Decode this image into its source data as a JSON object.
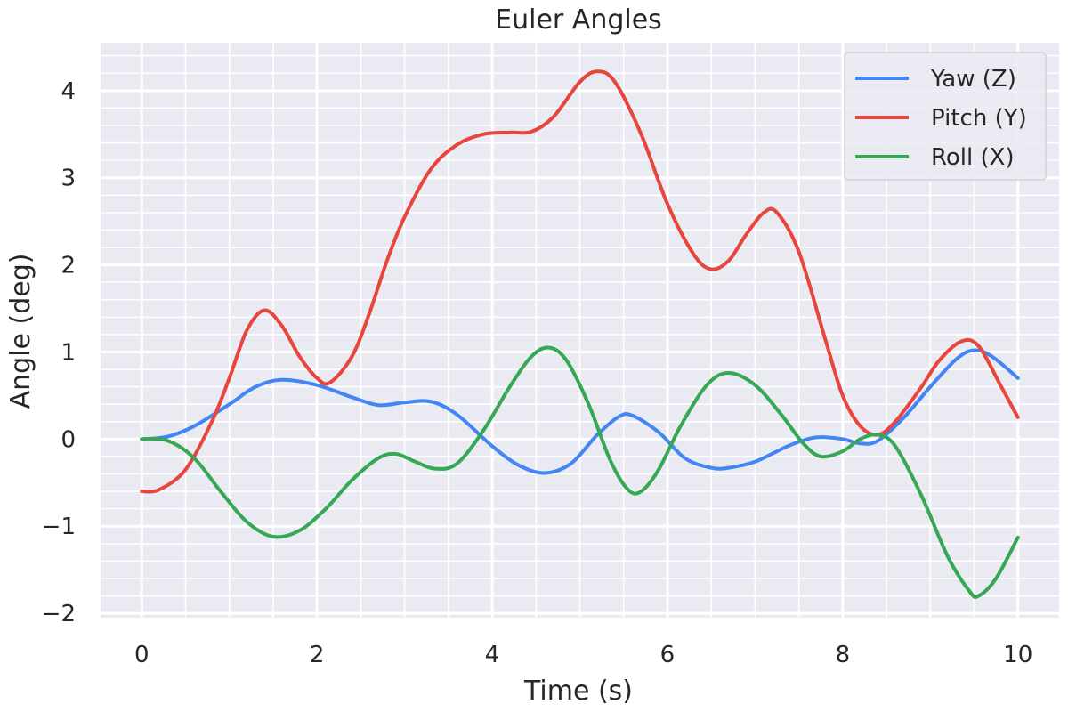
{
  "chart_data": {
    "type": "line",
    "title": "Euler Angles",
    "xlabel": "Time (s)",
    "ylabel": "Angle (deg)",
    "xlim": [
      -0.47,
      10.47
    ],
    "ylim": [
      -2.05,
      4.55
    ],
    "xticks": [
      0,
      2,
      4,
      6,
      8,
      10
    ],
    "xtick_labels": [
      "0",
      "2",
      "4",
      "6",
      "8",
      "10"
    ],
    "xminor": [
      0.5,
      1,
      1.5,
      2.5,
      3,
      3.5,
      4.5,
      5,
      5.5,
      6.5,
      7,
      7.5,
      8.5,
      9,
      9.5
    ],
    "yticks": [
      -2,
      -1,
      0,
      1,
      2,
      3,
      4
    ],
    "ytick_labels": [
      "−2",
      "−1",
      "0",
      "1",
      "2",
      "3",
      "4"
    ],
    "yminor_step": 0.2,
    "grid": true,
    "background": "#EAEAF2",
    "grid_color": "#FFFFFF",
    "legend_position": "top-right",
    "series": [
      {
        "name": "Yaw (Z)",
        "color": "#4285F4",
        "points": [
          [
            0,
            0
          ],
          [
            0.3,
            0.03
          ],
          [
            0.6,
            0.15
          ],
          [
            1.0,
            0.4
          ],
          [
            1.3,
            0.6
          ],
          [
            1.6,
            0.68
          ],
          [
            2.0,
            0.62
          ],
          [
            2.4,
            0.48
          ],
          [
            2.7,
            0.39
          ],
          [
            3.0,
            0.42
          ],
          [
            3.3,
            0.43
          ],
          [
            3.6,
            0.28
          ],
          [
            4.0,
            -0.08
          ],
          [
            4.3,
            -0.3
          ],
          [
            4.6,
            -0.39
          ],
          [
            4.9,
            -0.28
          ],
          [
            5.2,
            0.05
          ],
          [
            5.45,
            0.26
          ],
          [
            5.6,
            0.27
          ],
          [
            5.9,
            0.08
          ],
          [
            6.2,
            -0.22
          ],
          [
            6.5,
            -0.33
          ],
          [
            6.7,
            -0.33
          ],
          [
            7.0,
            -0.26
          ],
          [
            7.4,
            -0.07
          ],
          [
            7.7,
            0.02
          ],
          [
            8.0,
            0.0
          ],
          [
            8.2,
            -0.05
          ],
          [
            8.4,
            -0.02
          ],
          [
            8.7,
            0.25
          ],
          [
            9.0,
            0.6
          ],
          [
            9.3,
            0.92
          ],
          [
            9.5,
            1.02
          ],
          [
            9.7,
            0.95
          ],
          [
            10.0,
            0.7
          ]
        ]
      },
      {
        "name": "Pitch (Y)",
        "color": "#E8453C",
        "points": [
          [
            0,
            -0.6
          ],
          [
            0.2,
            -0.58
          ],
          [
            0.5,
            -0.35
          ],
          [
            0.8,
            0.2
          ],
          [
            1.0,
            0.7
          ],
          [
            1.2,
            1.25
          ],
          [
            1.4,
            1.48
          ],
          [
            1.6,
            1.3
          ],
          [
            1.8,
            0.95
          ],
          [
            2.0,
            0.7
          ],
          [
            2.15,
            0.65
          ],
          [
            2.4,
            0.95
          ],
          [
            2.6,
            1.45
          ],
          [
            2.8,
            2.05
          ],
          [
            3.0,
            2.55
          ],
          [
            3.3,
            3.1
          ],
          [
            3.6,
            3.38
          ],
          [
            3.9,
            3.5
          ],
          [
            4.2,
            3.52
          ],
          [
            4.45,
            3.53
          ],
          [
            4.7,
            3.7
          ],
          [
            5.0,
            4.1
          ],
          [
            5.2,
            4.22
          ],
          [
            5.4,
            4.1
          ],
          [
            5.7,
            3.5
          ],
          [
            6.0,
            2.7
          ],
          [
            6.3,
            2.12
          ],
          [
            6.5,
            1.95
          ],
          [
            6.7,
            2.05
          ],
          [
            6.9,
            2.35
          ],
          [
            7.1,
            2.6
          ],
          [
            7.25,
            2.6
          ],
          [
            7.5,
            2.15
          ],
          [
            7.8,
            1.15
          ],
          [
            8.0,
            0.5
          ],
          [
            8.2,
            0.15
          ],
          [
            8.4,
            0.05
          ],
          [
            8.6,
            0.2
          ],
          [
            8.9,
            0.6
          ],
          [
            9.1,
            0.9
          ],
          [
            9.35,
            1.12
          ],
          [
            9.55,
            1.07
          ],
          [
            9.8,
            0.62
          ],
          [
            10.0,
            0.25
          ]
        ]
      },
      {
        "name": "Roll (X)",
        "color": "#34A853",
        "points": [
          [
            0,
            0
          ],
          [
            0.3,
            -0.02
          ],
          [
            0.6,
            -0.22
          ],
          [
            0.9,
            -0.6
          ],
          [
            1.2,
            -0.95
          ],
          [
            1.5,
            -1.12
          ],
          [
            1.8,
            -1.05
          ],
          [
            2.1,
            -0.8
          ],
          [
            2.4,
            -0.47
          ],
          [
            2.7,
            -0.22
          ],
          [
            2.9,
            -0.17
          ],
          [
            3.1,
            -0.25
          ],
          [
            3.35,
            -0.34
          ],
          [
            3.6,
            -0.28
          ],
          [
            3.9,
            0.1
          ],
          [
            4.2,
            0.6
          ],
          [
            4.45,
            0.95
          ],
          [
            4.65,
            1.05
          ],
          [
            4.85,
            0.9
          ],
          [
            5.1,
            0.4
          ],
          [
            5.35,
            -0.25
          ],
          [
            5.55,
            -0.58
          ],
          [
            5.7,
            -0.6
          ],
          [
            5.9,
            -0.35
          ],
          [
            6.15,
            0.15
          ],
          [
            6.45,
            0.62
          ],
          [
            6.7,
            0.76
          ],
          [
            7.0,
            0.62
          ],
          [
            7.3,
            0.28
          ],
          [
            7.55,
            -0.05
          ],
          [
            7.75,
            -0.2
          ],
          [
            8.0,
            -0.14
          ],
          [
            8.2,
            0.0
          ],
          [
            8.4,
            0.05
          ],
          [
            8.6,
            -0.08
          ],
          [
            8.9,
            -0.65
          ],
          [
            9.2,
            -1.35
          ],
          [
            9.45,
            -1.75
          ],
          [
            9.55,
            -1.8
          ],
          [
            9.75,
            -1.6
          ],
          [
            10.0,
            -1.13
          ]
        ]
      }
    ]
  }
}
